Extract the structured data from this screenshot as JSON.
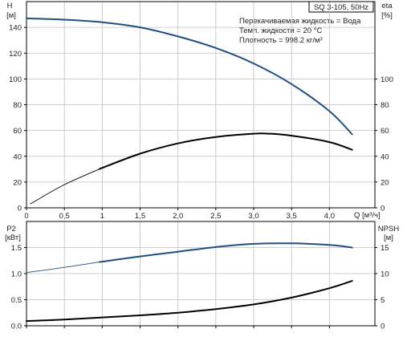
{
  "header": {
    "title": "SQ 3-105, 50Hz",
    "info_lines": [
      "Перекачиваемая жидкость = Вода",
      "Темп. жидкости = 20 °C",
      "Плотность = 998.2 кг/м³"
    ]
  },
  "colors": {
    "primary_curve": "#1f4e85",
    "secondary_curve": "#000000",
    "grid": "#bfbfbf",
    "axis": "#000000"
  },
  "chart_data": [
    {
      "id": "upper",
      "type": "line",
      "xlim": [
        0,
        4.6
      ],
      "x_ticks": [
        0,
        0.5,
        1,
        1.5,
        2,
        2.5,
        3,
        3.5,
        4
      ],
      "x_tick_labels": [
        "0",
        "0,5",
        "1",
        "1,5",
        "2,0",
        "2,5",
        "3,0",
        "3,5",
        "4,0"
      ],
      "xlabel": "Q [м³/ч]",
      "y_left": {
        "label_lines": [
          "H",
          "[м]"
        ],
        "lim": [
          0,
          160
        ],
        "ticks": [
          0,
          20,
          40,
          60,
          80,
          100,
          120,
          140
        ],
        "tick_labels": [
          "0",
          "20",
          "40",
          "60",
          "80",
          "100",
          "120",
          "140"
        ]
      },
      "y_right": {
        "label_lines": [
          "eta",
          "[%]"
        ],
        "lim": [
          0,
          160
        ],
        "ticks": [
          0,
          20,
          40,
          60,
          80,
          100
        ],
        "tick_labels": [
          "0",
          "20",
          "40",
          "60",
          "80",
          "100"
        ]
      },
      "grid": true,
      "series": [
        {
          "axis": "left",
          "color": "#1f4e85",
          "width": 2,
          "thin_until": 0,
          "x": [
            0,
            0.5,
            1.0,
            1.5,
            2.0,
            2.5,
            3.0,
            3.5,
            4.0,
            4.3
          ],
          "y": [
            147,
            146,
            144,
            140,
            133,
            124,
            112,
            96,
            75,
            57
          ]
        },
        {
          "axis": "right",
          "color": "#000000",
          "width": 2,
          "thin_until": 0.9,
          "x": [
            0.05,
            0.5,
            1.0,
            1.5,
            2.0,
            2.5,
            3.0,
            3.2,
            3.5,
            4.0,
            4.3
          ],
          "y": [
            3,
            18,
            31,
            42,
            50,
            55,
            57.5,
            57.5,
            56,
            51,
            45
          ]
        }
      ]
    },
    {
      "id": "lower",
      "type": "line",
      "xlim": [
        0,
        4.6
      ],
      "x_ticks": [
        0,
        0.5,
        1,
        1.5,
        2,
        2.5,
        3,
        3.5,
        4
      ],
      "y_left": {
        "label_lines": [
          "P2",
          "[кВт]"
        ],
        "lim": [
          0,
          2.0
        ],
        "ticks": [
          0,
          0.5,
          1.0,
          1.5
        ],
        "tick_labels": [
          "0.0",
          "0.5",
          "1.0",
          "1.5"
        ]
      },
      "y_right": {
        "label_lines": [
          "NPSH",
          "[м]"
        ],
        "lim": [
          0,
          20
        ],
        "ticks": [
          0,
          5,
          10,
          15
        ],
        "tick_labels": [
          "0",
          "5",
          "10",
          "15"
        ]
      },
      "grid": true,
      "series": [
        {
          "axis": "left",
          "color": "#1f4e85",
          "width": 2,
          "thin_until": 0.9,
          "x": [
            0,
            0.5,
            1.0,
            1.5,
            2.0,
            2.5,
            3.0,
            3.5,
            4.0,
            4.3
          ],
          "y": [
            1.02,
            1.12,
            1.23,
            1.33,
            1.42,
            1.51,
            1.57,
            1.58,
            1.55,
            1.5
          ]
        },
        {
          "axis": "right",
          "color": "#000000",
          "width": 2,
          "thin_until": 0,
          "x": [
            0,
            0.5,
            1.0,
            1.5,
            2.0,
            2.5,
            3.0,
            3.5,
            4.0,
            4.3
          ],
          "y": [
            0.9,
            1.2,
            1.6,
            2.0,
            2.5,
            3.2,
            4.1,
            5.4,
            7.2,
            8.6
          ]
        }
      ]
    }
  ]
}
